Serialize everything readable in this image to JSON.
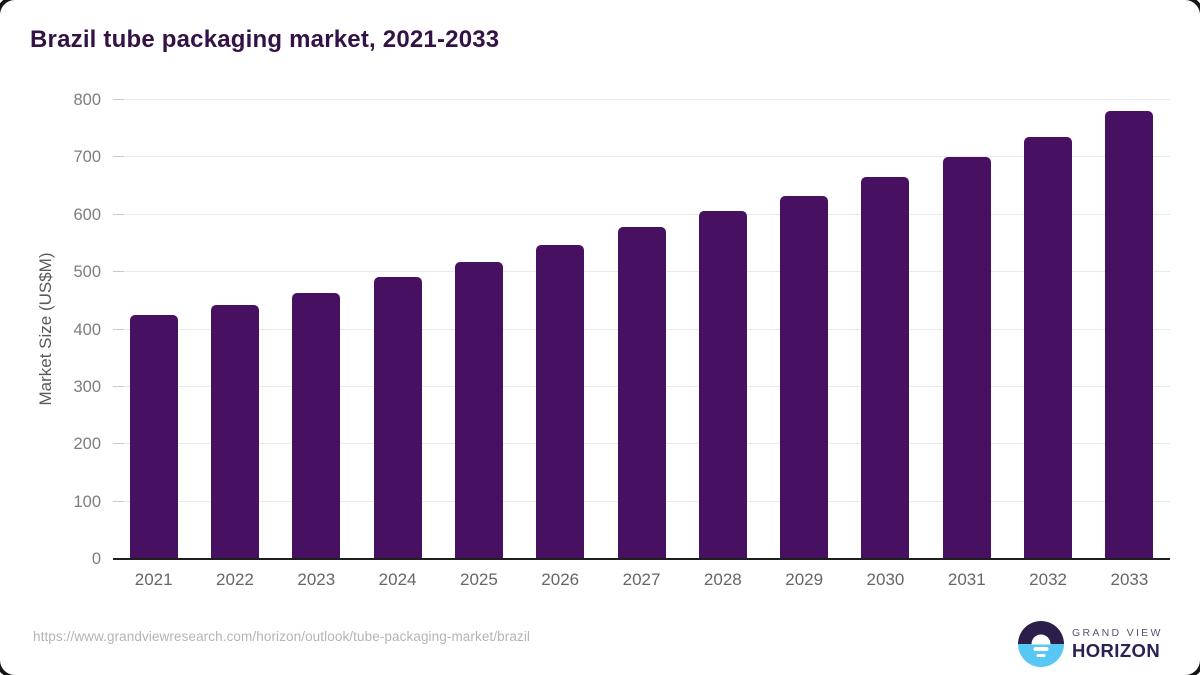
{
  "page": {
    "title": "Brazil tube packaging market, 2021-2033"
  },
  "chart_data": {
    "type": "bar",
    "title": "Brazil tube packaging market, 2021-2033",
    "xlabel": "",
    "ylabel": "Market Size (US$M)",
    "categories": [
      "2021",
      "2022",
      "2023",
      "2024",
      "2025",
      "2026",
      "2027",
      "2028",
      "2029",
      "2030",
      "2031",
      "2032",
      "2033"
    ],
    "values": [
      425,
      443,
      464,
      491,
      517,
      547,
      579,
      606,
      633,
      665,
      700,
      736,
      780
    ],
    "ylim": [
      0,
      800
    ],
    "ytick_step": 100,
    "yticks": [
      0,
      100,
      200,
      300,
      400,
      500,
      600,
      700,
      800
    ],
    "grid": true,
    "legend_position": "none",
    "bar_color": "#471060"
  },
  "footer": {
    "source_url": "https://www.grandviewresearch.com/horizon/outlook/tube-packaging-market/brazil",
    "brand": {
      "name_top": "GRAND VIEW",
      "name_bottom": "HORIZON"
    }
  },
  "colors": {
    "title_text": "#331245",
    "bar": "#471060",
    "gridline": "#e9e9e9",
    "axis_line": "#1f1f1f",
    "y_tick_text": "#7d7d7d",
    "x_tick_text": "#666666",
    "axis_title_text": "#595959",
    "url_text": "#b4b4b4",
    "logo_dark": "#2b1e4a",
    "logo_blue": "#58c7f4"
  }
}
